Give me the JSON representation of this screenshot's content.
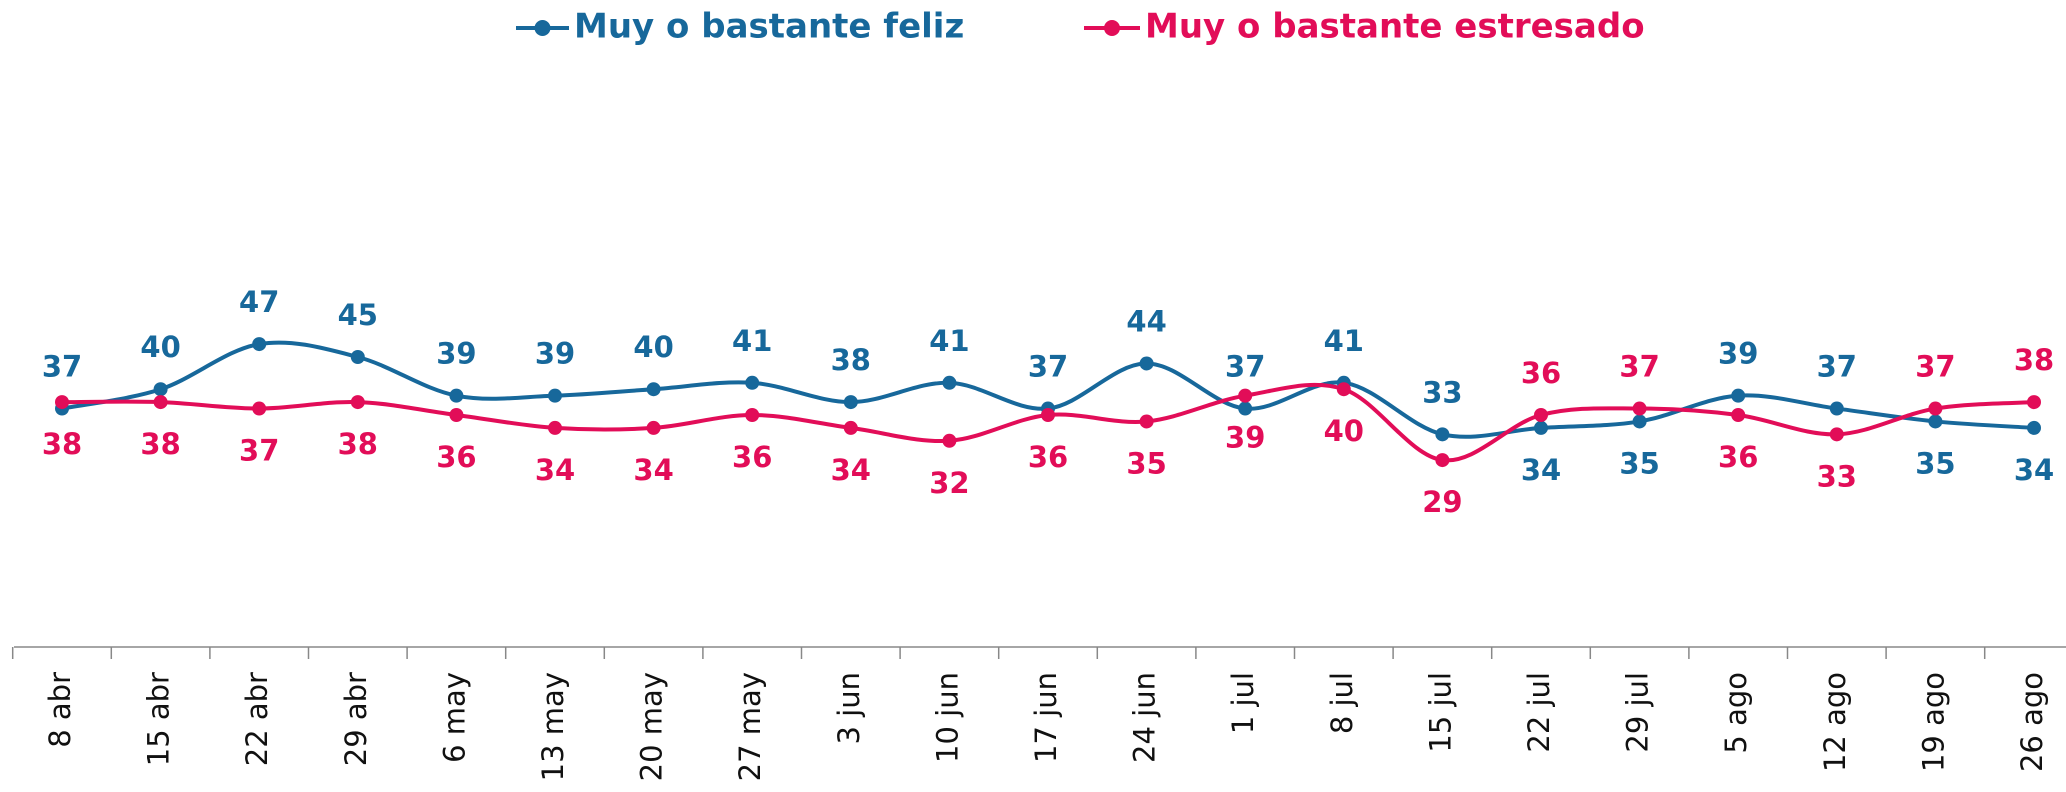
{
  "chart_data": {
    "type": "line",
    "categories": [
      "8 abr",
      "15 abr",
      "22 abr",
      "29 abr",
      "6 may",
      "13 may",
      "20 may",
      "27 may",
      "3 jun",
      "10 jun",
      "17 jun",
      "24 jun",
      "1 jul",
      "8 jul",
      "15 jul",
      "22 jul",
      "29 jul",
      "5 ago",
      "12 ago",
      "19 ago",
      "26 ago"
    ],
    "series": [
      {
        "name": "Muy o bastante feliz",
        "color": "#17689b",
        "values": [
          37,
          40,
          47,
          45,
          39,
          39,
          40,
          41,
          38,
          41,
          37,
          44,
          37,
          41,
          33,
          34,
          35,
          39,
          37,
          35,
          34
        ]
      },
      {
        "name": "Muy o bastante estresado",
        "color": "#e20d58",
        "values": [
          38,
          38,
          37,
          38,
          36,
          34,
          34,
          36,
          34,
          32,
          36,
          35,
          39,
          40,
          29,
          36,
          37,
          36,
          33,
          37,
          38
        ]
      }
    ],
    "ylim": [
      0,
      90
    ],
    "legend": "top"
  }
}
